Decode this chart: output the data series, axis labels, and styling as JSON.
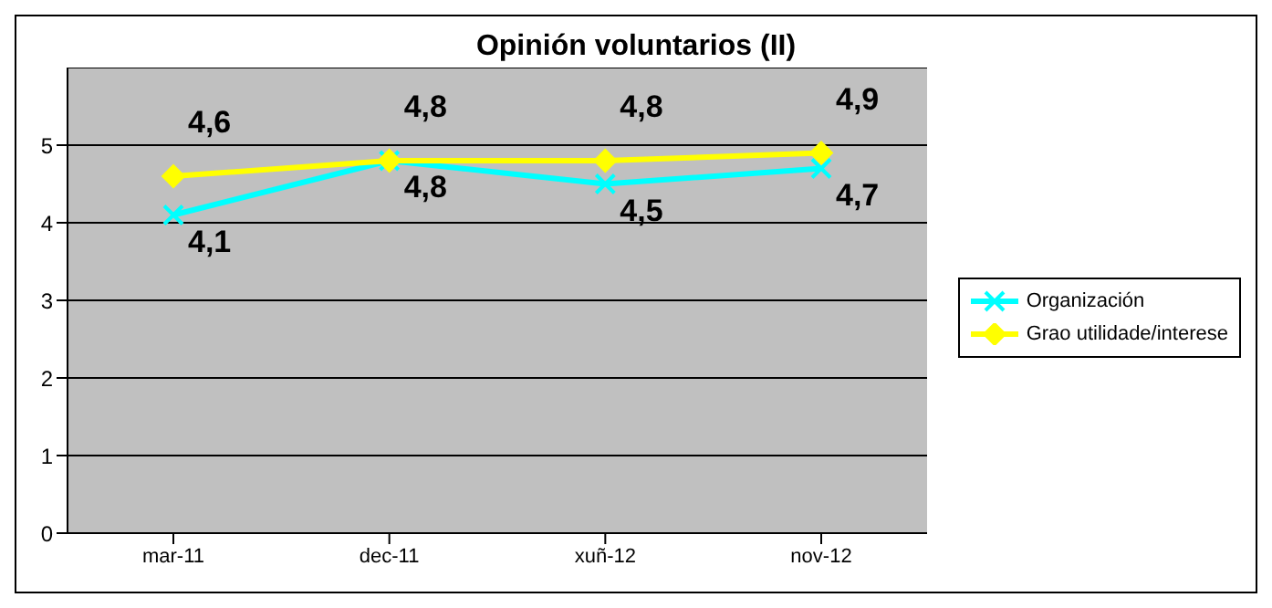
{
  "chart_data": {
    "type": "line",
    "title": "Opinión voluntarios (II)",
    "categories": [
      "mar-11",
      "dec-11",
      "xuñ-12",
      "nov-12"
    ],
    "series": [
      {
        "name": "Organización",
        "color": "#00ffff",
        "marker": "cross",
        "values": [
          4.1,
          4.8,
          4.5,
          4.7
        ],
        "value_labels": [
          "4,1",
          "4,8",
          "4,5",
          "4,7"
        ]
      },
      {
        "name": "Grao utilidade/interese",
        "color": "#ffff00",
        "marker": "diamond",
        "values": [
          4.6,
          4.8,
          4.8,
          4.9
        ],
        "value_labels": [
          "4,6",
          "4,8",
          "4,8",
          "4,9"
        ]
      }
    ],
    "ylim": [
      0,
      6
    ],
    "yticks": [
      0,
      1,
      2,
      3,
      4,
      5
    ],
    "grid": "y",
    "legend": "right"
  }
}
